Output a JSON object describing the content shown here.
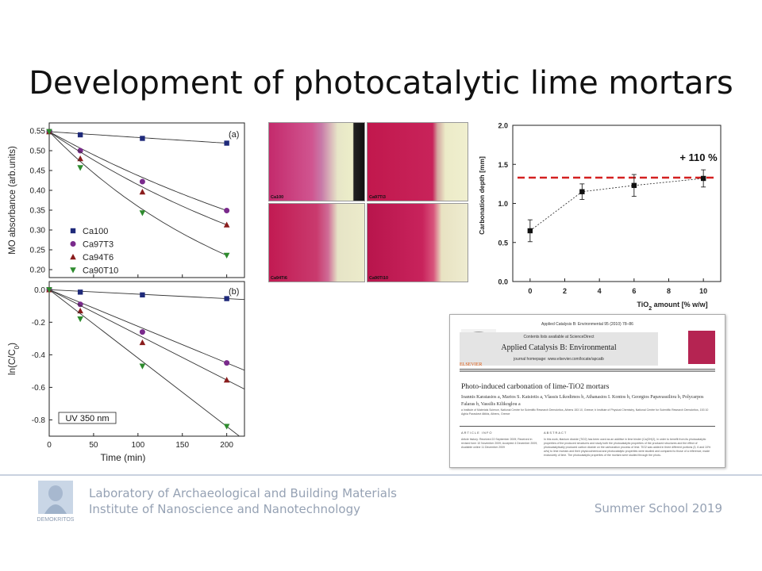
{
  "slide": {
    "title": "Development of photocatalytic lime mortars"
  },
  "chart_data": [
    {
      "type": "scatter",
      "panel": "(a)",
      "xlabel": "",
      "ylabel": "MO absorbance (arb.units)",
      "xlim": [
        0,
        220
      ],
      "ylim": [
        0.18,
        0.57
      ],
      "yticks": [
        "0.55",
        "0.50",
        "0.45",
        "0.40",
        "0.35",
        "0.30",
        "0.25",
        "0.20"
      ],
      "legend_position": "lower-left",
      "series": [
        {
          "name": "Ca100",
          "marker": "square",
          "color": "#1f2a7a",
          "x": [
            0,
            35,
            105,
            200
          ],
          "y": [
            0.548,
            0.54,
            0.531,
            0.519
          ]
        },
        {
          "name": "Ca97T3",
          "marker": "circle",
          "color": "#7a2a8c",
          "x": [
            0,
            35,
            105,
            200
          ],
          "y": [
            0.548,
            0.5,
            0.422,
            0.349
          ]
        },
        {
          "name": "Ca94T6",
          "marker": "triangle-up",
          "color": "#8a1c1c",
          "x": [
            0,
            35,
            105,
            200
          ],
          "y": [
            0.548,
            0.48,
            0.396,
            0.313
          ]
        },
        {
          "name": "Ca90T10",
          "marker": "triangle-down",
          "color": "#2e8b2e",
          "x": [
            0,
            35,
            105,
            200
          ],
          "y": [
            0.548,
            0.457,
            0.343,
            0.236
          ]
        }
      ]
    },
    {
      "type": "scatter",
      "panel": "(b)",
      "xlabel": "Time (min)",
      "ylabel": "ln(C/C",
      "ylabel_sub": "0",
      "ylabel_end": ")",
      "xlim": [
        0,
        220
      ],
      "ylim": [
        -0.9,
        0.05
      ],
      "xticks": [
        "0",
        "50",
        "100",
        "150",
        "200"
      ],
      "yticks": [
        "0.0",
        "-0.2",
        "-0.4",
        "-0.6",
        "-0.8"
      ],
      "annotation": "UV 350 nm",
      "series": [
        {
          "name": "Ca100",
          "marker": "square",
          "color": "#1f2a7a",
          "x": [
            0,
            35,
            105,
            200
          ],
          "y": [
            0.0,
            -0.015,
            -0.032,
            -0.055
          ]
        },
        {
          "name": "Ca97T3",
          "marker": "circle",
          "color": "#7a2a8c",
          "x": [
            0,
            35,
            105,
            200
          ],
          "y": [
            0.0,
            -0.09,
            -0.26,
            -0.45
          ]
        },
        {
          "name": "Ca94T6",
          "marker": "triangle-up",
          "color": "#8a1c1c",
          "x": [
            0,
            35,
            105,
            200
          ],
          "y": [
            0.0,
            -0.13,
            -0.325,
            -0.555
          ]
        },
        {
          "name": "Ca90T10",
          "marker": "triangle-down",
          "color": "#2e8b2e",
          "x": [
            0,
            35,
            105,
            200
          ],
          "y": [
            0.0,
            -0.18,
            -0.47,
            -0.84
          ]
        }
      ]
    },
    {
      "type": "line",
      "xlabel": "TiO",
      "xlabel_sub": "2",
      "xlabel_end": " amount [% w/w]",
      "ylabel": "Carbonation depth [mm]",
      "xlim": [
        -1,
        11
      ],
      "ylim": [
        0.0,
        2.0
      ],
      "xticks": [
        "0",
        "2",
        "4",
        "6",
        "8",
        "10"
      ],
      "yticks": [
        "2.0",
        "1.5",
        "1.0",
        "0.5",
        "0.0"
      ],
      "annotation": "+ 110 %",
      "reference_line": 1.33,
      "reference_color": "#d42020",
      "series": [
        {
          "x": [
            0,
            3,
            6,
            10
          ],
          "y": [
            0.65,
            1.15,
            1.23,
            1.32
          ],
          "err": [
            0.14,
            0.1,
            0.14,
            0.11
          ]
        }
      ]
    }
  ],
  "photos": [
    {
      "label": "Ca100"
    },
    {
      "label": "Ca97Ti3"
    },
    {
      "label": "Ca94Ti6"
    },
    {
      "label": "Ca90Ti10"
    }
  ],
  "paper": {
    "journal_ref": "Applied Catalysis B: Environmental 95 (2010) 78–86",
    "contents": "Contents lists available at ScienceDirect",
    "journal": "Applied Catalysis B: Environmental",
    "homepage": "journal homepage: www.elsevier.com/locate/apcatb",
    "publisher": "ELSEVIER",
    "title": "Photo-induced carbonation of lime-TiO2 mortars",
    "authors": "Ioannis Karatasios a, Marios S. Katsiotis a, Vlassis Likodimos b, Athanasios I. Kontos b, Georgios Papavassiliou b, Polycarpos Falaras b, Vassilis Kilikoglou a",
    "affiliations": "a Institute of Materials Science, National Centre for Scientific Research Demokritos, Athens 153 10, Greece; b Institute of Physical Chemistry, National Centre for Scientific Research Demokritos, 153 10 Aghia Paraskevi Attikis, Athens, Greece",
    "info_head": "ARTICLE INFO",
    "abstract_head": "ABSTRACT",
    "history": "Article history: Received 22 September 2009; Received in revised form 10 November 2009; Accepted 4 December 2009; Available online 11 December 2009",
    "abstract": "In this work, titanium dioxide (TiO2) has been used as an additive in lime binder (Ca(OH)2), in order to benefit from its photocatalytic properties of the produced structures and study both the photocatalytic properties of the produced structures and the effect of photocatalytically produced carbon dioxide on the carbonation process of lime. TiO2 was added in three different portions (3, 6 and 10% w/w) to lime mortars and their physicochemical and photocatalytic properties were studied and compared to those of a reference, made exclusively of lime. The photocatalytic properties of the mortars were studied through the photo-"
  },
  "footer": {
    "logo_caption": "DEMOKRITOS",
    "lab": "Laboratory of Archaeological and Building Materials",
    "institute": "Institute of Nanoscience and Nanotechnology",
    "event": "Summer School 2019"
  }
}
